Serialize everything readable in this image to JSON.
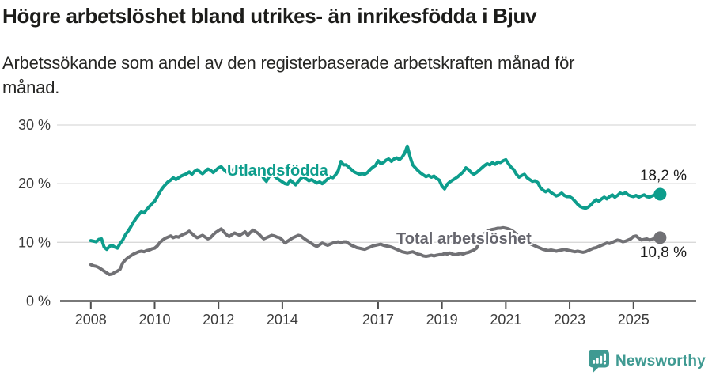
{
  "header": {
    "title": "Högre arbetslöshet bland utrikes- än inrikesfödda i Bjuv",
    "subtitle_lines": [
      "Arbetssökande som andel av den registerbaserade arbetskraften månad för",
      "månad."
    ]
  },
  "chart_data": {
    "type": "line",
    "title": "Högre arbetslöshet bland utrikes- än inrikesfödda i Bjuv",
    "subtitle": "Arbetssökande som andel av den registerbaserade arbetskraften månad för månad.",
    "unit": "%",
    "grid": "horizontal",
    "legend": "inline-labels",
    "ylim": [
      0,
      30
    ],
    "x_start": {
      "year": 2008,
      "month": 1
    },
    "x_frequency": "monthly",
    "y_ticks": [
      {
        "value": 0,
        "label": "0 %"
      },
      {
        "value": 10,
        "label": "10 %"
      },
      {
        "value": 20,
        "label": "20 %"
      },
      {
        "value": 30,
        "label": "30 %"
      }
    ],
    "x_ticks": [
      {
        "year": 2008,
        "label": "2008"
      },
      {
        "year": 2010,
        "label": "2010"
      },
      {
        "year": 2012,
        "label": "2012"
      },
      {
        "year": 2014,
        "label": "2014"
      },
      {
        "year": 2017,
        "label": "2017"
      },
      {
        "year": 2019,
        "label": "2019"
      },
      {
        "year": 2021,
        "label": "2021"
      },
      {
        "year": 2023,
        "label": "2023"
      },
      {
        "year": 2025,
        "label": "2025"
      }
    ],
    "series": [
      {
        "name": "Utlandsfödda",
        "color": "#0d9d8c",
        "end_value": 18.2,
        "end_label": "18,2 %",
        "values": [
          10.3,
          10.2,
          10.1,
          10.5,
          10.6,
          9.2,
          8.8,
          9.3,
          9.5,
          9.2,
          9.0,
          9.8,
          10.4,
          11.3,
          11.9,
          12.6,
          13.4,
          14.1,
          14.7,
          15.2,
          15.0,
          15.6,
          16.1,
          16.6,
          17.0,
          17.8,
          18.6,
          19.3,
          19.8,
          20.3,
          20.6,
          21.0,
          20.7,
          21.0,
          21.3,
          21.5,
          21.7,
          22.0,
          21.6,
          22.1,
          22.4,
          22.0,
          21.7,
          22.1,
          22.5,
          22.3,
          21.9,
          22.3,
          22.7,
          22.9,
          22.4,
          22.0,
          21.7,
          22.2,
          22.6,
          22.3,
          21.9,
          21.6,
          22.0,
          22.3,
          22.2,
          22.6,
          22.8,
          22.3,
          21.8,
          20.9,
          20.4,
          21.2,
          21.8,
          21.3,
          20.9,
          20.6,
          20.3,
          20.0,
          19.9,
          20.6,
          20.2,
          19.8,
          20.4,
          20.9,
          21.2,
          20.8,
          20.5,
          20.7,
          20.4,
          20.1,
          20.3,
          20.0,
          20.4,
          20.8,
          21.2,
          21.0,
          21.5,
          22.2,
          23.8,
          23.2,
          23.2,
          22.8,
          22.4,
          22.0,
          21.8,
          21.6,
          21.7,
          21.6,
          21.9,
          22.4,
          22.8,
          23.1,
          23.9,
          23.4,
          23.6,
          24.0,
          24.2,
          23.8,
          24.2,
          24.4,
          24.1,
          24.5,
          25.2,
          26.4,
          24.6,
          23.2,
          22.7,
          22.2,
          21.8,
          21.5,
          21.2,
          21.4,
          21.1,
          21.3,
          20.9,
          20.6,
          19.6,
          19.1,
          19.9,
          20.3,
          20.6,
          20.9,
          21.2,
          21.6,
          22.0,
          22.7,
          22.4,
          21.9,
          21.6,
          21.9,
          22.3,
          22.7,
          23.1,
          23.4,
          23.2,
          23.6,
          23.3,
          23.7,
          23.6,
          23.9,
          24.1,
          23.4,
          22.8,
          22.4,
          21.6,
          21.1,
          21.4,
          21.6,
          21.0,
          20.7,
          20.4,
          20.5,
          20.2,
          19.3,
          18.9,
          18.6,
          18.9,
          18.5,
          18.2,
          17.9,
          18.1,
          18.4,
          18.0,
          17.8,
          17.8,
          17.5,
          17.0,
          16.5,
          16.1,
          15.9,
          15.8,
          16.0,
          16.4,
          16.9,
          17.3,
          17.0,
          17.4,
          17.7,
          17.4,
          17.8,
          18.1,
          17.7,
          18.0,
          18.4,
          18.2,
          18.5,
          18.1,
          17.9,
          17.8,
          18.0,
          17.7,
          17.9,
          18.1,
          17.8,
          17.7,
          17.9,
          18.1,
          18.0,
          18.2
        ]
      },
      {
        "name": "Total arbetslöshet",
        "color": "#717175",
        "end_value": 10.8,
        "end_label": "10,8 %",
        "values": [
          6.2,
          6.0,
          5.9,
          5.7,
          5.4,
          5.1,
          4.8,
          4.5,
          4.6,
          4.9,
          5.1,
          5.4,
          6.5,
          7.0,
          7.4,
          7.7,
          8.0,
          8.2,
          8.4,
          8.5,
          8.4,
          8.6,
          8.7,
          8.9,
          9.0,
          9.4,
          10.0,
          10.4,
          10.7,
          10.9,
          11.1,
          10.8,
          11.0,
          10.9,
          11.2,
          11.4,
          11.6,
          11.9,
          11.5,
          11.1,
          10.8,
          11.0,
          11.2,
          10.9,
          10.6,
          10.8,
          11.3,
          11.7,
          12.0,
          12.3,
          11.8,
          11.3,
          11.0,
          11.3,
          11.6,
          11.4,
          11.2,
          11.5,
          11.8,
          11.2,
          11.7,
          12.1,
          11.8,
          11.5,
          11.0,
          10.6,
          10.8,
          11.0,
          11.2,
          11.1,
          10.9,
          10.8,
          10.4,
          9.9,
          10.2,
          10.5,
          10.8,
          11.0,
          11.2,
          11.1,
          10.7,
          10.4,
          10.1,
          9.8,
          9.5,
          9.3,
          9.6,
          9.9,
          9.7,
          9.5,
          9.7,
          9.9,
          10.0,
          10.1,
          9.9,
          10.1,
          10.1,
          9.8,
          9.5,
          9.3,
          9.1,
          9.0,
          8.9,
          8.8,
          9.0,
          9.2,
          9.4,
          9.5,
          9.6,
          9.7,
          9.5,
          9.4,
          9.3,
          9.2,
          9.0,
          8.8,
          8.6,
          8.4,
          8.3,
          8.2,
          8.3,
          8.4,
          8.2,
          8.0,
          7.9,
          7.7,
          7.6,
          7.7,
          7.8,
          7.7,
          7.8,
          7.9,
          7.9,
          8.1,
          8.0,
          8.2,
          8.0,
          7.9,
          8.0,
          8.1,
          8.0,
          8.2,
          8.3,
          8.5,
          8.7,
          9.0,
          10.0,
          10.9,
          11.5,
          11.9,
          12.1,
          12.2,
          12.3,
          12.4,
          12.4,
          12.5,
          12.4,
          12.3,
          12.1,
          11.8,
          11.4,
          11.0,
          10.6,
          10.3,
          10.0,
          9.8,
          9.6,
          9.4,
          9.2,
          9.0,
          8.8,
          8.7,
          8.6,
          8.7,
          8.6,
          8.5,
          8.6,
          8.7,
          8.8,
          8.7,
          8.6,
          8.5,
          8.4,
          8.5,
          8.4,
          8.3,
          8.4,
          8.6,
          8.8,
          9.0,
          9.1,
          9.3,
          9.5,
          9.7,
          9.9,
          9.8,
          10.0,
          10.2,
          10.4,
          10.3,
          10.1,
          10.2,
          10.4,
          10.6,
          11.0,
          11.1,
          10.7,
          10.4,
          10.5,
          10.6,
          10.4,
          10.5,
          10.7,
          10.6,
          10.8
        ]
      }
    ]
  },
  "colors": {
    "accent_teal": "#0d9d8c",
    "line_gray": "#717175",
    "axis": "#4d4d4d",
    "gridline": "#d9d9d9",
    "logo_teal": "#3f9a92"
  },
  "footer": {
    "brand": "Newsworthy",
    "logo_icon": "bar-chart-speech-bubble-icon"
  }
}
